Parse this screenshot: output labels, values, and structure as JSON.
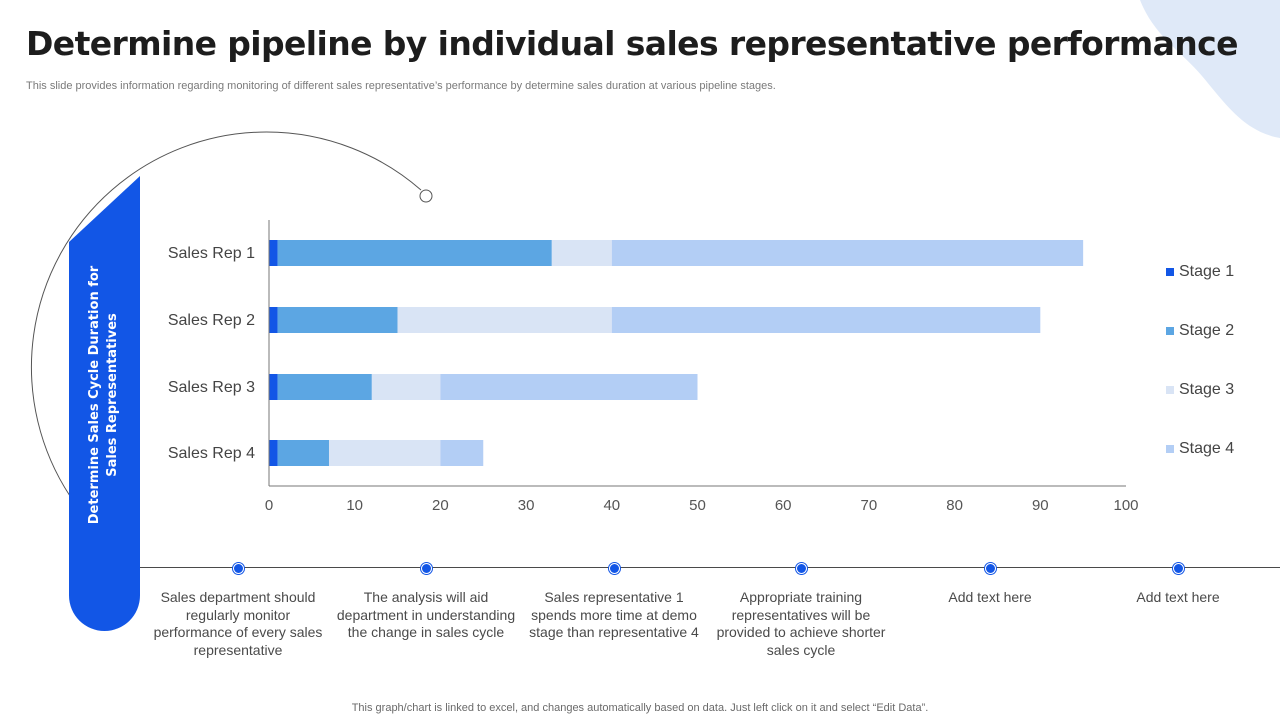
{
  "title": "Determine pipeline by individual sales representative performance",
  "subtitle": "This slide provides information regarding monitoring of different sales representative’s performance by determine sales duration at various pipeline stages.",
  "side_label": "Determine Sales Cycle Duration for Sales Representatives",
  "colors": {
    "accent": "#1256e6",
    "stage1": "#1256e6",
    "stage2": "#5ca6e3",
    "stage3": "#d9e4f5",
    "stage4": "#b3cef5",
    "blob": "#dfe9f8"
  },
  "chart_data": {
    "type": "bar",
    "orientation": "horizontal",
    "stacked": true,
    "categories": [
      "Sales Rep 1",
      "Sales Rep 2",
      "Sales Rep 3",
      "Sales Rep 4"
    ],
    "series": [
      {
        "name": "Stage 1",
        "values": [
          1,
          1,
          1,
          1
        ]
      },
      {
        "name": "Stage 2",
        "values": [
          32,
          14,
          11,
          6
        ]
      },
      {
        "name": "Stage 3",
        "values": [
          7,
          25,
          8,
          13
        ]
      },
      {
        "name": "Stage 4",
        "values": [
          55,
          50,
          30,
          5
        ]
      }
    ],
    "xlim": [
      0,
      100
    ],
    "xticks": [
      0,
      10,
      20,
      30,
      40,
      50,
      60,
      70,
      80,
      90,
      100
    ],
    "legend": "right",
    "grid": false
  },
  "notes": [
    "Sales department should regularly monitor performance of every sales representative",
    "The analysis will aid department in understanding the change in sales cycle",
    "Sales representative 1 spends more time at demo stage than representative 4",
    "Appropriate training representatives will be provided to achieve shorter sales cycle",
    "Add text here",
    "Add text here"
  ],
  "footer": "This graph/chart is linked to excel,  and changes automatically based on data. Just left click on it and select “Edit Data”."
}
